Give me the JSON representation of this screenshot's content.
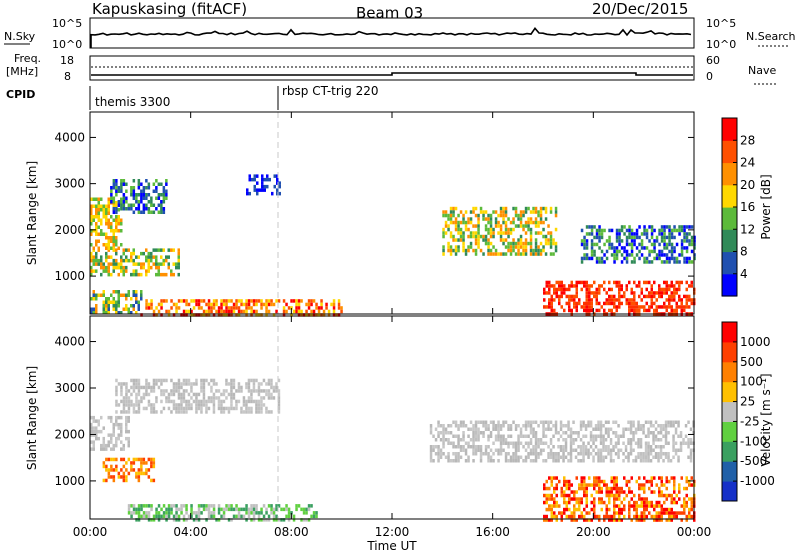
{
  "header": {
    "station": "Kapuskasing (fitACF)",
    "beam": "Beam 03",
    "date": "20/Dec/2015"
  },
  "strip": {
    "nsky_label": "N.Sky",
    "nsky_ticks": [
      "10^5",
      "10^0"
    ],
    "nsearch_label": "N.Search",
    "nsearch_ticks": [
      "10^5",
      "10^0"
    ],
    "freq_label": "Freq.",
    "freq_unit": "[MHz]",
    "freq_ticks": [
      "18",
      "8"
    ],
    "nave_label": "Nave",
    "nave_ticks": [
      "60",
      "0"
    ],
    "cpid_label": "CPID",
    "cpid_segments": [
      {
        "name": "themis 3300",
        "start_hour": 0.0
      },
      {
        "name": "rbsp CT-trig 220",
        "start_hour": 7.5
      }
    ]
  },
  "chart_data": [
    {
      "type": "heatmap",
      "panel": "power",
      "xlabel": "",
      "ylabel": "Slant Range [km]",
      "xlim": [
        0,
        24
      ],
      "ylim": [
        180,
        4550
      ],
      "yticks": [
        "1000",
        "2000",
        "3000",
        "4000"
      ],
      "colorbar_label": "Power [dB]",
      "colorbar_ticks": [
        "4",
        "8",
        "12",
        "16",
        "20",
        "24",
        "28"
      ],
      "colorbar_colors": [
        "#0000ff",
        "#2050b0",
        "#308a58",
        "#5cba3a",
        "#ffd800",
        "#ff9000",
        "#ff5000",
        "#ff0000"
      ],
      "dashed_marker_hour": 7.5,
      "echo_regions": [
        {
          "t0": 0.0,
          "t1": 2.0,
          "r0": 180,
          "r1": 700,
          "level": "mixed low"
        },
        {
          "t0": 0.0,
          "t1": 3.5,
          "r0": 1000,
          "r1": 1600,
          "level": "green-yellow"
        },
        {
          "t0": 0.0,
          "t1": 1.2,
          "r0": 1600,
          "r1": 2700,
          "level": "yellow-orange"
        },
        {
          "t0": 0.8,
          "t1": 3.0,
          "r0": 2400,
          "r1": 3100,
          "level": "green-blue"
        },
        {
          "t0": 6.2,
          "t1": 7.5,
          "r0": 2800,
          "r1": 3200,
          "level": "blue"
        },
        {
          "t0": 2.0,
          "t1": 10.0,
          "r0": 180,
          "r1": 500,
          "level": "orange-red"
        },
        {
          "t0": 14.0,
          "t1": 18.5,
          "r0": 1500,
          "r1": 2500,
          "level": "green-yellow"
        },
        {
          "t0": 18.0,
          "t1": 24.0,
          "r0": 180,
          "r1": 900,
          "level": "red"
        },
        {
          "t0": 19.5,
          "t1": 24.0,
          "r0": 1300,
          "r1": 2100,
          "level": "green-blue"
        }
      ]
    },
    {
      "type": "heatmap",
      "panel": "velocity",
      "xlabel": "Time UT",
      "ylabel": "Slant Range [km]",
      "xlim": [
        0,
        24
      ],
      "ylim": [
        180,
        4550
      ],
      "xticks": [
        "00:00",
        "04:00",
        "08:00",
        "12:00",
        "16:00",
        "20:00",
        "00:00"
      ],
      "yticks": [
        "1000",
        "2000",
        "3000",
        "4000"
      ],
      "colorbar_label": "Velocity [m s⁻¹]",
      "colorbar_ticks": [
        "1000",
        "500",
        "100",
        "25",
        "-25",
        "-100",
        "-500",
        "-1000"
      ],
      "colorbar_colors": [
        "#1530c8",
        "#2060a8",
        "#3aa060",
        "#60d040",
        "#c0c0c0",
        "#ffc000",
        "#ff8000",
        "#ff4000",
        "#ff0000"
      ],
      "dashed_marker_hour": 7.5,
      "echo_regions": [
        {
          "t0": 0.0,
          "t1": 1.5,
          "r0": 1700,
          "r1": 2400,
          "level": "grey"
        },
        {
          "t0": 0.5,
          "t1": 2.5,
          "r0": 1000,
          "r1": 1500,
          "level": "orange"
        },
        {
          "t0": 1.5,
          "t1": 9.0,
          "r0": 180,
          "r1": 500,
          "level": "green"
        },
        {
          "t0": 1.0,
          "t1": 7.5,
          "r0": 2500,
          "r1": 3200,
          "level": "grey"
        },
        {
          "t0": 13.5,
          "t1": 24.0,
          "r0": 1400,
          "r1": 2300,
          "level": "grey"
        },
        {
          "t0": 18.0,
          "t1": 24.0,
          "r0": 180,
          "r1": 1100,
          "level": "orange-red"
        }
      ]
    }
  ]
}
